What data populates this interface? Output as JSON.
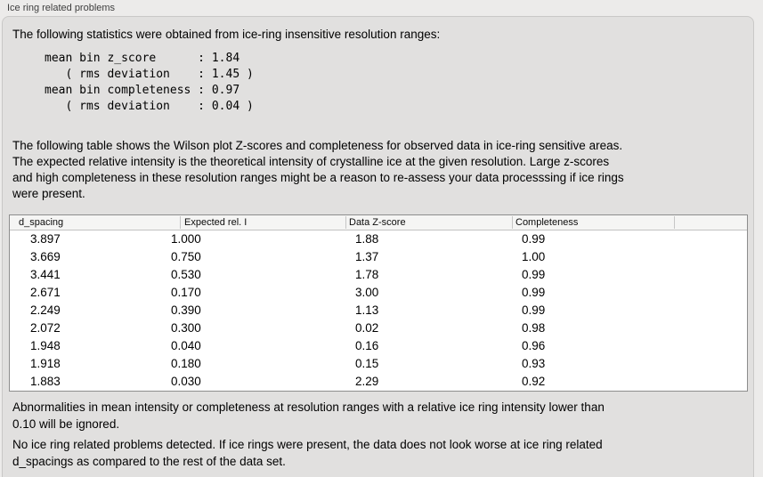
{
  "section": {
    "title": "Ice ring related problems",
    "intro": "The following statistics were obtained from ice-ring insensitive resolution ranges:",
    "stats_block": "mean bin z_score      : 1.84\n   ( rms deviation    : 1.45 )\nmean bin completeness : 0.97\n   ( rms deviation    : 0.04 )",
    "description": "The following table shows the Wilson plot Z-scores and completeness for observed data in ice-ring sensitive areas.\nThe expected relative intensity is the theoretical intensity of crystalline ice at the given resolution. Large z-scores\nand high completeness in these resolution ranges might be a reason to re-assess your data processsing if ice rings\nwere present.",
    "ignore_note": "Abnormalities in mean intensity or completeness at resolution ranges with a relative ice ring intensity lower than\n0.10 will be ignored.",
    "conclusion": "No ice ring related problems detected. If ice rings were present, the data does not look worse at ice ring related\nd_spacings as compared to the rest of the data set."
  },
  "stats": {
    "mean_bin_z_score": "1.84",
    "z_score_rms_deviation": "1.45",
    "mean_bin_completeness": "0.97",
    "completeness_rms_deviation": "0.04"
  },
  "table": {
    "headers": [
      "d_spacing",
      "Expected rel. I",
      "Data Z-score",
      "Completeness"
    ],
    "rows": [
      {
        "d_spacing": "3.897",
        "expected_rel_i": "1.000",
        "data_z_score": "1.88",
        "completeness": "0.99"
      },
      {
        "d_spacing": "3.669",
        "expected_rel_i": "0.750",
        "data_z_score": "1.37",
        "completeness": "1.00"
      },
      {
        "d_spacing": "3.441",
        "expected_rel_i": "0.530",
        "data_z_score": "1.78",
        "completeness": "0.99"
      },
      {
        "d_spacing": "2.671",
        "expected_rel_i": "0.170",
        "data_z_score": "3.00",
        "completeness": "0.99"
      },
      {
        "d_spacing": "2.249",
        "expected_rel_i": "0.390",
        "data_z_score": "1.13",
        "completeness": "0.99"
      },
      {
        "d_spacing": "2.072",
        "expected_rel_i": "0.300",
        "data_z_score": "0.02",
        "completeness": "0.98"
      },
      {
        "d_spacing": "1.948",
        "expected_rel_i": "0.040",
        "data_z_score": "0.16",
        "completeness": "0.96"
      },
      {
        "d_spacing": "1.918",
        "expected_rel_i": "0.180",
        "data_z_score": "0.15",
        "completeness": "0.93"
      },
      {
        "d_spacing": "1.883",
        "expected_rel_i": "0.030",
        "data_z_score": "2.29",
        "completeness": "0.92"
      }
    ]
  },
  "colors": {
    "outer_background": "#ECEBEA",
    "panel_background": "#E1E0DF",
    "panel_border": "#C9C8C7",
    "table_border": "#8D8D8D",
    "table_header_background": "#F5F5F4",
    "table_body_background": "#FFFFFF",
    "text": "#000000",
    "label_text": "#3E3E3E"
  }
}
